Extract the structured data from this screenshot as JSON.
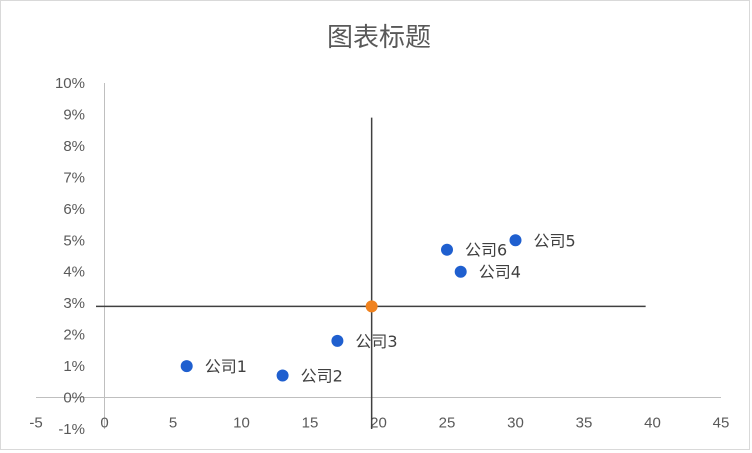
{
  "chart_data": {
    "type": "scatter",
    "title": "图表标题",
    "xlabel": "",
    "ylabel": "",
    "xlim": [
      -5,
      45
    ],
    "ylim": [
      -1,
      10
    ],
    "x_ticks": [
      "-5",
      "0",
      "5",
      "10",
      "15",
      "20",
      "25",
      "30",
      "35",
      "40",
      "45"
    ],
    "y_ticks": [
      "-1%",
      "0%",
      "1%",
      "2%",
      "3%",
      "4%",
      "5%",
      "6%",
      "7%",
      "8%",
      "9%",
      "10%"
    ],
    "grid": false,
    "legend": "none",
    "series": [
      {
        "color": "#1f5fcf",
        "points": [
          {
            "label": "公司1",
            "x": 6,
            "y": 1.0
          },
          {
            "label": "公司2",
            "x": 13,
            "y": 0.7
          },
          {
            "label": "公司3",
            "x": 17,
            "y": 1.8
          },
          {
            "label": "公司4",
            "x": 26,
            "y": 4.0
          },
          {
            "label": "公司5",
            "x": 30,
            "y": 5.0
          },
          {
            "label": "公司6",
            "x": 25,
            "y": 4.7
          }
        ]
      },
      {
        "color": "#f0821e",
        "points": [
          {
            "label": "",
            "x": 19.5,
            "y": 2.9
          }
        ]
      }
    ],
    "reference_lines": {
      "vertical": {
        "x": 19.5,
        "y_from": -1,
        "y_to": 8.9
      },
      "horizontal": {
        "y": 2.9,
        "x_from": -5,
        "x_to": 39.5
      },
      "color": "#404040"
    }
  }
}
